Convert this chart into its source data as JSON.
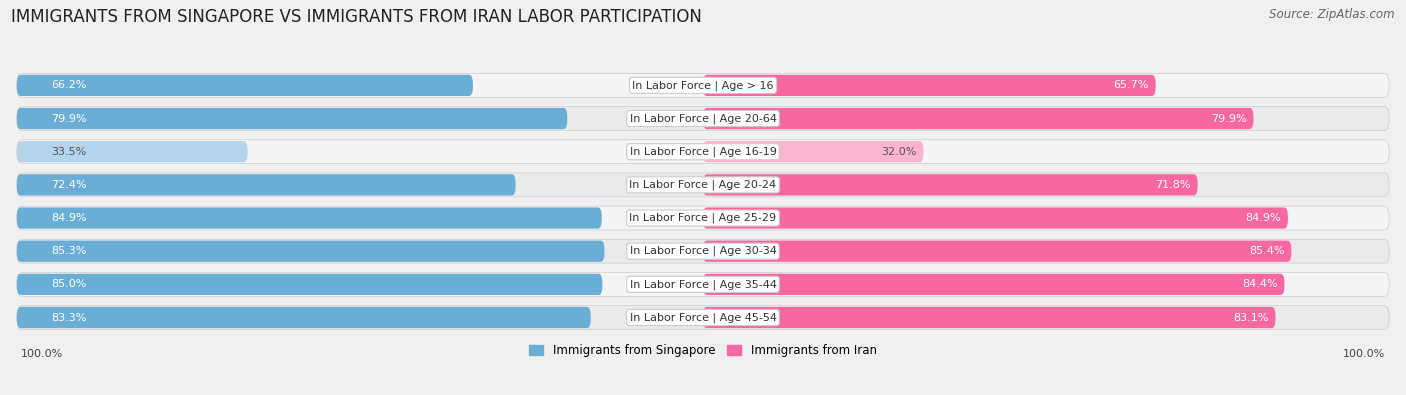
{
  "title": "IMMIGRANTS FROM SINGAPORE VS IMMIGRANTS FROM IRAN LABOR PARTICIPATION",
  "source": "Source: ZipAtlas.com",
  "categories": [
    "In Labor Force | Age > 16",
    "In Labor Force | Age 20-64",
    "In Labor Force | Age 16-19",
    "In Labor Force | Age 20-24",
    "In Labor Force | Age 25-29",
    "In Labor Force | Age 30-34",
    "In Labor Force | Age 35-44",
    "In Labor Force | Age 45-54"
  ],
  "singapore_values": [
    66.2,
    79.9,
    33.5,
    72.4,
    84.9,
    85.3,
    85.0,
    83.3
  ],
  "iran_values": [
    65.7,
    79.9,
    32.0,
    71.8,
    84.9,
    85.4,
    84.4,
    83.1
  ],
  "singapore_color": "#6aaed6",
  "iran_color": "#f768a1",
  "singapore_color_light": "#b3d4eb",
  "iran_color_light": "#fbb4cf",
  "row_bg_even": "#f5f5f5",
  "row_bg_odd": "#eaeaea",
  "background_color": "#f0f0f0",
  "legend_singapore": "Immigrants from Singapore",
  "legend_iran": "Immigrants from Iran",
  "title_fontsize": 12,
  "label_fontsize": 8,
  "value_fontsize": 8,
  "source_fontsize": 8.5
}
